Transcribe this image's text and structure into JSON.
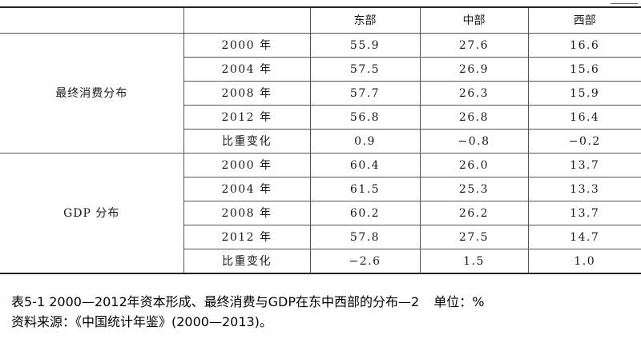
{
  "table": {
    "columns": [
      "东部",
      "中部",
      "西部"
    ],
    "groups": [
      {
        "label": "最终消费分布",
        "rows": [
          {
            "year": "2000 年",
            "east": "55.9",
            "central": "27.6",
            "west": "16.6"
          },
          {
            "year": "2004 年",
            "east": "57.5",
            "central": "26.9",
            "west": "15.6"
          },
          {
            "year": "2008 年",
            "east": "57.7",
            "central": "26.3",
            "west": "15.9"
          },
          {
            "year": "2012 年",
            "east": "56.8",
            "central": "26.8",
            "west": "16.4"
          },
          {
            "year": "比重变化",
            "east": "0.9",
            "central": "−0.8",
            "west": "−0.2"
          }
        ]
      },
      {
        "label": "GDP 分布",
        "rows": [
          {
            "year": "2000 年",
            "east": "60.4",
            "central": "26.0",
            "west": "13.7"
          },
          {
            "year": "2004 年",
            "east": "61.5",
            "central": "25.3",
            "west": "13.3"
          },
          {
            "year": "2008 年",
            "east": "60.2",
            "central": "26.2",
            "west": "13.7"
          },
          {
            "year": "2012 年",
            "east": "57.8",
            "central": "27.5",
            "west": "14.7"
          },
          {
            "year": "比重变化",
            "east": "−2.6",
            "central": "1.5",
            "west": "1.0"
          }
        ]
      }
    ]
  },
  "caption": {
    "title": "表5-1  2000—2012年资本形成、最终消费与GDP在东中西部的分布—2",
    "unit": "单位：%"
  },
  "source": "资料来源：《中国统计年鉴》(2000—2013)。"
}
